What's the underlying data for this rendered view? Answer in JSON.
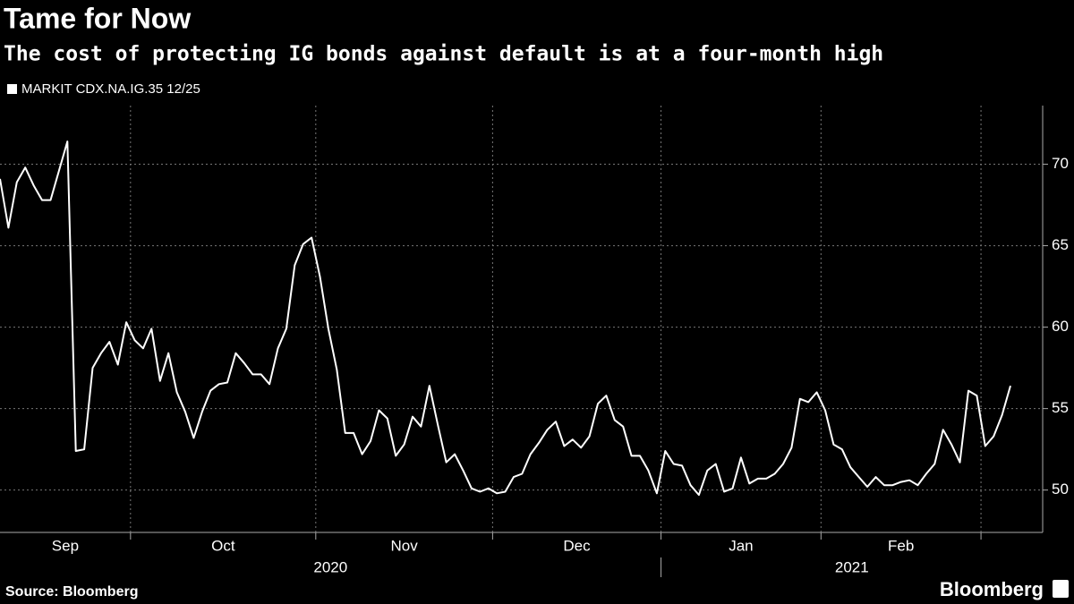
{
  "chart_data": {
    "type": "line",
    "title": "Tame for Now",
    "subtitle": "The cost of protecting IG bonds against default is at a four-month high",
    "source": "Source: Bloomberg",
    "logo": "Bloomberg",
    "series": [
      {
        "name": "MARKIT CDX.NA.IG.35 12/25",
        "color": "#ffffff"
      }
    ],
    "years": [
      {
        "label": "2020",
        "months": [
          {
            "label": "Sep",
            "values": [
              69.1,
              66.1,
              68.9,
              69.8,
              68.7,
              67.8,
              67.8,
              69.6,
              71.4,
              52.4,
              52.5,
              57.5,
              58.4,
              59.1,
              57.7,
              60.3
            ]
          },
          {
            "label": "Oct",
            "values": [
              59.2,
              58.7,
              59.9,
              56.7,
              58.4,
              56.0,
              54.8,
              53.2,
              54.8,
              56.1,
              56.5,
              56.6,
              58.4,
              57.8,
              57.1,
              57.1,
              56.5,
              58.7,
              59.9,
              63.8,
              65.1,
              65.5
            ]
          },
          {
            "label": "Nov",
            "values": [
              63.1,
              59.9,
              57.4,
              53.5,
              53.5,
              52.2,
              53.0,
              54.9,
              54.4,
              52.1,
              52.8,
              54.5,
              53.9,
              56.4,
              54.0,
              51.7,
              52.2,
              51.2,
              50.1,
              49.9,
              50.1
            ]
          },
          {
            "label": "Dec",
            "values": [
              49.8,
              49.9,
              50.8,
              51.0,
              52.2,
              52.9,
              53.7,
              54.2,
              52.7,
              53.1,
              52.6,
              53.3,
              55.3,
              55.8,
              54.3,
              53.9,
              52.1,
              52.1,
              51.2,
              49.8
            ]
          }
        ]
      },
      {
        "label": "2021",
        "months": [
          {
            "label": "Jan",
            "values": [
              52.4,
              51.6,
              51.5,
              50.3,
              49.7,
              51.2,
              51.6,
              49.9,
              50.1,
              52.0,
              50.4,
              50.7,
              50.7,
              51.0,
              51.6,
              52.6,
              55.6,
              55.4,
              56.0
            ]
          },
          {
            "label": "Feb",
            "values": [
              54.9,
              52.8,
              52.5,
              51.4,
              50.8,
              50.2,
              50.8,
              50.3,
              50.3,
              50.5,
              50.6,
              50.3,
              51.0,
              51.6,
              53.7,
              52.8,
              51.7,
              56.1,
              55.8
            ]
          },
          {
            "label": null,
            "values": [
              52.7,
              53.3,
              54.6,
              56.4
            ]
          }
        ]
      }
    ],
    "ylim": [
      47.4,
      73.6
    ],
    "yticks": [
      50,
      55,
      60,
      65,
      70
    ],
    "grid": true
  }
}
